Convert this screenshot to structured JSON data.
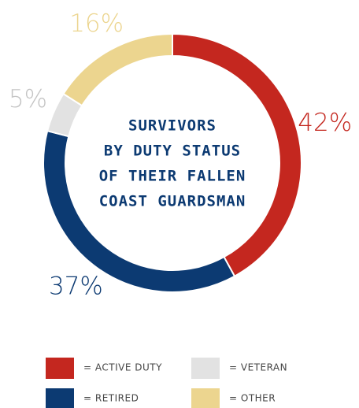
{
  "chart_data": {
    "type": "donut",
    "title": [
      "SURVIVORS",
      "BY DUTY STATUS",
      "OF THEIR FALLEN",
      "COAST GUARDSMAN"
    ],
    "categories": [
      "= ACTIVE DUTY",
      "= RETIRED",
      "= VETERAN",
      "= OTHER"
    ],
    "values": [
      42,
      37,
      5,
      16
    ],
    "value_labels": [
      "42%",
      "37%",
      "5%",
      "16%"
    ],
    "colors": [
      "#c4271f",
      "#0c3a72",
      "#e2e2e2",
      "#ecd58f"
    ]
  }
}
